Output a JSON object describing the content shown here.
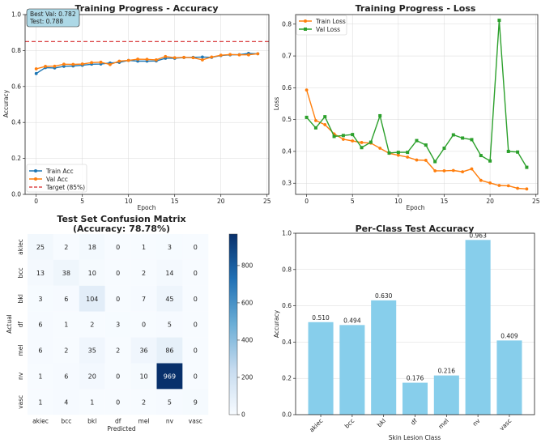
{
  "colors": {
    "train": "#1f77b4",
    "val_acc": "#ff7f0e",
    "val_loss": "#2ca02c",
    "target": "#d62728",
    "bar": "#87ceeb",
    "grid": "#d9d9d9",
    "annotation_bg": "#add8e6"
  },
  "chart_data": [
    {
      "id": "accuracy",
      "type": "line",
      "title": "Training Progress - Accuracy",
      "xlabel": "Epoch",
      "ylabel": "Accuracy",
      "xlim": [
        -1.2,
        25.2
      ],
      "ylim": [
        0.0,
        1.0
      ],
      "xticks": [
        0,
        5,
        10,
        15,
        20,
        25
      ],
      "yticks": [
        0.0,
        0.2,
        0.4,
        0.6,
        0.8,
        1.0
      ],
      "x": [
        0,
        1,
        2,
        3,
        4,
        5,
        6,
        7,
        8,
        9,
        10,
        11,
        12,
        13,
        14,
        15,
        16,
        17,
        18,
        19,
        20,
        21,
        22,
        23,
        24
      ],
      "series": [
        {
          "name": "Train Acc",
          "color": "#1f77b4",
          "marker": "circle",
          "values": [
            0.672,
            0.705,
            0.703,
            0.712,
            0.714,
            0.718,
            0.724,
            0.725,
            0.731,
            0.734,
            0.745,
            0.741,
            0.741,
            0.742,
            0.757,
            0.757,
            0.761,
            0.762,
            0.764,
            0.762,
            0.772,
            0.776,
            0.777,
            0.784,
            0.782
          ]
        },
        {
          "name": "Val Acc",
          "color": "#ff7f0e",
          "marker": "circle",
          "values": [
            0.698,
            0.712,
            0.713,
            0.724,
            0.723,
            0.725,
            0.733,
            0.735,
            0.722,
            0.741,
            0.745,
            0.752,
            0.751,
            0.748,
            0.767,
            0.76,
            0.762,
            0.76,
            0.748,
            0.764,
            0.774,
            0.778,
            0.776,
            0.776,
            0.782
          ]
        }
      ],
      "hline": {
        "name": "Target (85%)",
        "value": 0.85,
        "color": "#d62728"
      },
      "annotation": [
        "Best Val: 0.782",
        "Test: 0.788"
      ],
      "legend": [
        "Train Acc",
        "Val Acc",
        "Target (85%)"
      ],
      "legend_position": "lower-left"
    },
    {
      "id": "loss",
      "type": "line",
      "title": "Training Progress - Loss",
      "xlabel": "Epoch",
      "ylabel": "Loss",
      "xlim": [
        -1.2,
        25.2
      ],
      "ylim": [
        0.265,
        0.83
      ],
      "xticks": [
        0,
        5,
        10,
        15,
        20,
        25
      ],
      "yticks": [
        0.3,
        0.4,
        0.5,
        0.6,
        0.7,
        0.8
      ],
      "x": [
        0,
        1,
        2,
        3,
        4,
        5,
        6,
        7,
        8,
        9,
        10,
        11,
        12,
        13,
        14,
        15,
        16,
        17,
        18,
        19,
        20,
        21,
        22,
        23,
        24
      ],
      "series": [
        {
          "name": "Train Loss",
          "color": "#ff7f0e",
          "marker": "circle",
          "values": [
            0.593,
            0.497,
            0.484,
            0.455,
            0.438,
            0.433,
            0.428,
            0.426,
            0.41,
            0.394,
            0.388,
            0.382,
            0.373,
            0.372,
            0.339,
            0.339,
            0.34,
            0.336,
            0.345,
            0.309,
            0.301,
            0.293,
            0.292,
            0.284,
            0.282
          ]
        },
        {
          "name": "Val Loss",
          "color": "#2ca02c",
          "marker": "square",
          "values": [
            0.507,
            0.474,
            0.509,
            0.447,
            0.45,
            0.453,
            0.412,
            0.429,
            0.512,
            0.395,
            0.397,
            0.397,
            0.434,
            0.42,
            0.368,
            0.41,
            0.452,
            0.442,
            0.437,
            0.387,
            0.37,
            0.812,
            0.4,
            0.398,
            0.35
          ]
        }
      ],
      "legend": [
        "Train Loss",
        "Val Loss"
      ],
      "legend_position": "top-left"
    },
    {
      "id": "confusion",
      "type": "heatmap",
      "title": "Test Set Confusion Matrix",
      "subtitle": "(Accuracy: 78.78%)",
      "xlabel": "Predicted",
      "ylabel": "Actual",
      "labels": [
        "akiec",
        "bcc",
        "bkl",
        "df",
        "mel",
        "nv",
        "vasc"
      ],
      "matrix": [
        [
          25,
          2,
          18,
          0,
          1,
          3,
          0
        ],
        [
          13,
          38,
          10,
          0,
          2,
          14,
          0
        ],
        [
          3,
          6,
          104,
          0,
          7,
          45,
          0
        ],
        [
          6,
          1,
          2,
          3,
          0,
          5,
          0
        ],
        [
          6,
          2,
          35,
          2,
          36,
          86,
          0
        ],
        [
          1,
          6,
          20,
          0,
          10,
          969,
          0
        ],
        [
          1,
          4,
          1,
          0,
          2,
          5,
          9
        ]
      ],
      "colorbar_ticks": [
        0,
        200,
        400,
        600,
        800
      ],
      "vmax": 969
    },
    {
      "id": "per_class",
      "type": "bar",
      "title": "Per-Class Test Accuracy",
      "xlabel": "Skin Lesion Class",
      "ylabel": "Accuracy",
      "ylim": [
        0.0,
        1.0
      ],
      "yticks": [
        0.0,
        0.2,
        0.4,
        0.6,
        0.8,
        1.0
      ],
      "categories": [
        "akiec",
        "bcc",
        "bkl",
        "df",
        "mel",
        "nv",
        "vasc"
      ],
      "values": [
        0.51,
        0.494,
        0.63,
        0.176,
        0.216,
        0.963,
        0.409
      ],
      "value_labels": [
        "0.510",
        "0.494",
        "0.630",
        "0.176",
        "0.216",
        "0.963",
        "0.409"
      ]
    }
  ]
}
